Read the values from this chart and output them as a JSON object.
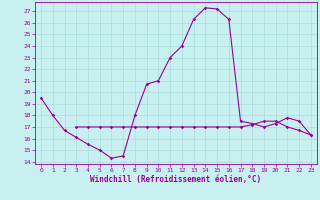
{
  "xlabel": "Windchill (Refroidissement éolien,°C)",
  "x_values": [
    0,
    1,
    2,
    3,
    4,
    5,
    6,
    7,
    8,
    9,
    10,
    11,
    12,
    13,
    14,
    15,
    16,
    17,
    18,
    19,
    20,
    21,
    22,
    23
  ],
  "line1_y": [
    19.5,
    18.0,
    16.7,
    16.1,
    15.5,
    15.0,
    14.3,
    14.5,
    18.0,
    20.7,
    21.0,
    23.0,
    24.0,
    26.3,
    27.3,
    27.2,
    26.3,
    17.5,
    17.3,
    17.0,
    17.3,
    17.8,
    17.5,
    16.3
  ],
  "line2_y": [
    null,
    null,
    null,
    17.0,
    17.0,
    17.0,
    17.0,
    17.0,
    17.0,
    17.0,
    17.0,
    17.0,
    17.0,
    17.0,
    17.0,
    17.0,
    17.0,
    17.0,
    17.2,
    17.5,
    17.5,
    17.0,
    16.7,
    16.3
  ],
  "line_color": "#990099",
  "bg_color": "#c8f0f0",
  "grid_color": "#aadddd",
  "yticks": [
    14,
    15,
    16,
    17,
    18,
    19,
    20,
    21,
    22,
    23,
    24,
    25,
    26,
    27
  ],
  "xticks": [
    0,
    1,
    2,
    3,
    4,
    5,
    6,
    7,
    8,
    9,
    10,
    11,
    12,
    13,
    14,
    15,
    16,
    17,
    18,
    19,
    20,
    21,
    22,
    23
  ],
  "ylim_min": 13.8,
  "ylim_max": 27.8,
  "xlim_min": -0.5,
  "xlim_max": 23.5
}
